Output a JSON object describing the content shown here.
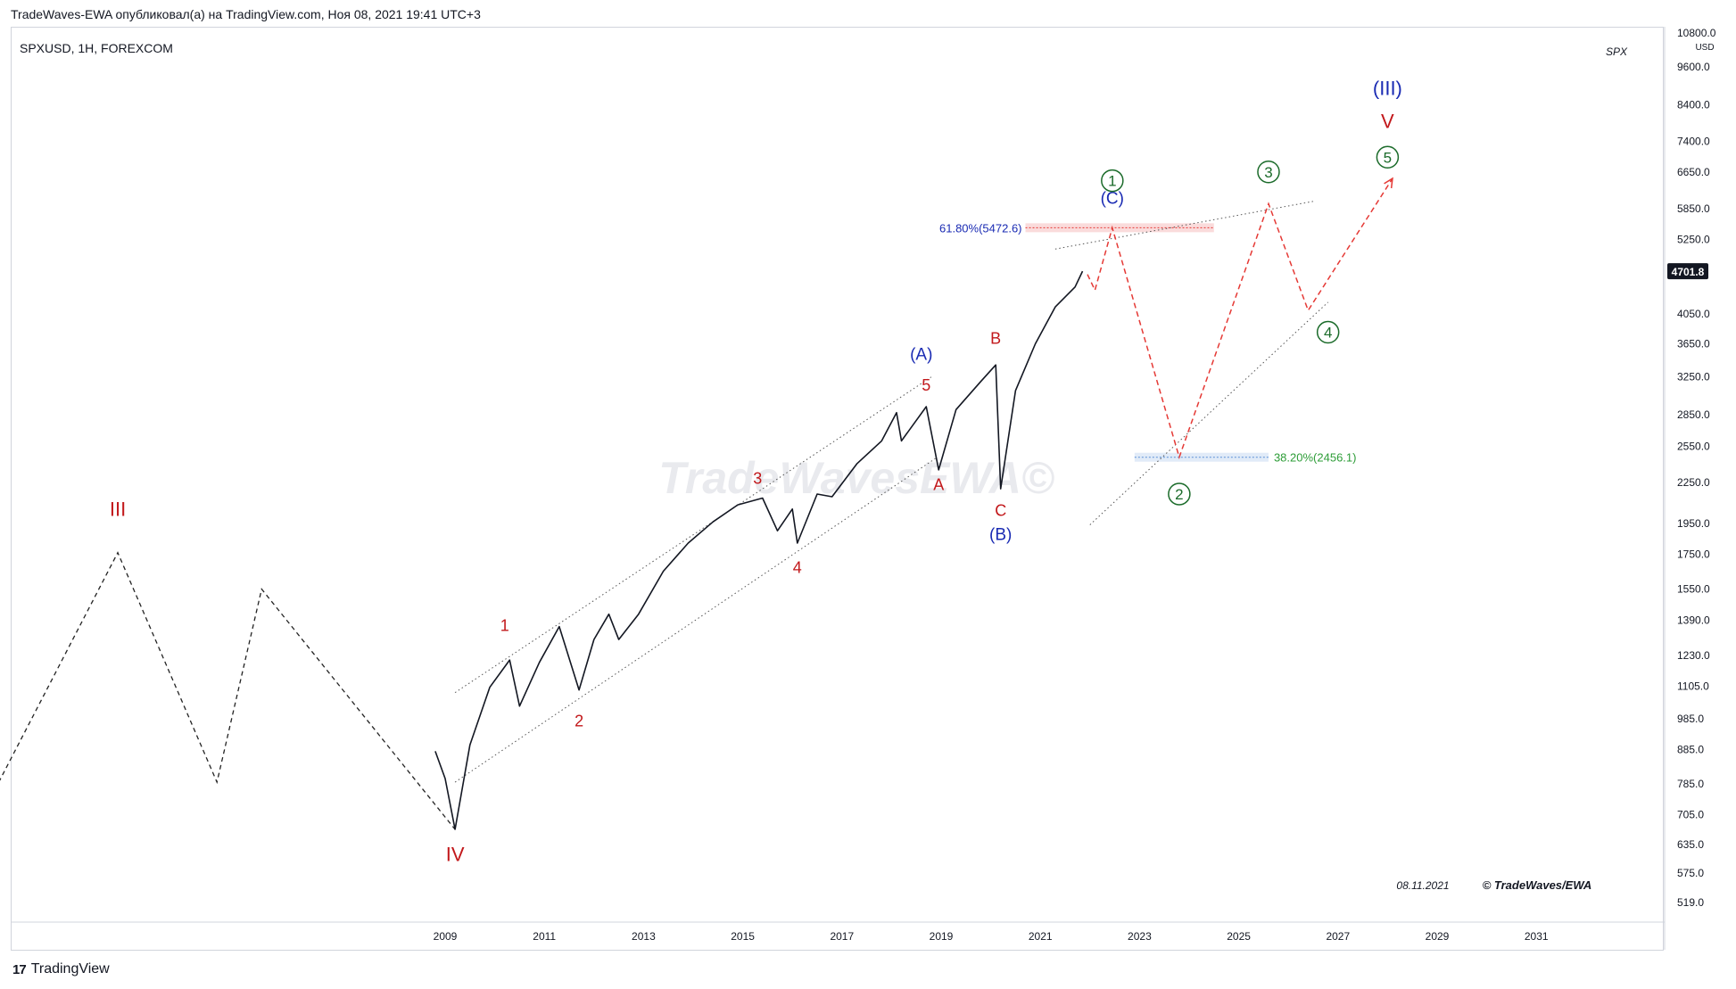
{
  "header": {
    "published": "TradeWaves-EWA опубликовал(а) на TradingView.com, Ноя 08, 2021 19:41 UTC+3",
    "symbol": "SPXUSD, 1H, FOREXCOM",
    "ticker_tag": "SPX"
  },
  "footer": {
    "logo_mark": "17",
    "brand": "TradingView"
  },
  "colors": {
    "red": "#c2181b",
    "blue": "#1a2bb3",
    "green": "#1b6b2a",
    "forecast_red": "#e53935",
    "price": "#131722",
    "fib_blue": "#1a2bb3",
    "fib_green": "#2e9d38"
  },
  "chart_data": {
    "type": "line",
    "scale": "log",
    "currency": "USD",
    "y_ticks": [
      "10800.0",
      "9600.0",
      "8400.0",
      "7400.0",
      "6650.0",
      "5850.0",
      "5250.0",
      "4050.0",
      "3650.0",
      "3250.0",
      "2850.0",
      "2550.0",
      "2250.0",
      "1950.0",
      "1750.0",
      "1550.0",
      "1390.0",
      "1230.0",
      "1105.0",
      "985.0",
      "885.0",
      "785.0",
      "705.0",
      "635.0",
      "575.0",
      "519.0"
    ],
    "x_ticks": [
      "2009",
      "2011",
      "2013",
      "2015",
      "2017",
      "2019",
      "2021",
      "2023",
      "2025",
      "2027",
      "2029",
      "2031"
    ],
    "last_price": "4701.8",
    "price_series": [
      {
        "x": 2008.8,
        "y": 880
      },
      {
        "x": 2009.0,
        "y": 800
      },
      {
        "x": 2009.2,
        "y": 670
      },
      {
        "x": 2009.5,
        "y": 900
      },
      {
        "x": 2009.9,
        "y": 1100
      },
      {
        "x": 2010.3,
        "y": 1210
      },
      {
        "x": 2010.5,
        "y": 1030
      },
      {
        "x": 2010.9,
        "y": 1200
      },
      {
        "x": 2011.3,
        "y": 1360
      },
      {
        "x": 2011.7,
        "y": 1090
      },
      {
        "x": 2012.0,
        "y": 1300
      },
      {
        "x": 2012.3,
        "y": 1420
      },
      {
        "x": 2012.5,
        "y": 1300
      },
      {
        "x": 2012.9,
        "y": 1420
      },
      {
        "x": 2013.4,
        "y": 1650
      },
      {
        "x": 2013.9,
        "y": 1820
      },
      {
        "x": 2014.4,
        "y": 1960
      },
      {
        "x": 2014.9,
        "y": 2080
      },
      {
        "x": 2015.4,
        "y": 2130
      },
      {
        "x": 2015.7,
        "y": 1900
      },
      {
        "x": 2016.0,
        "y": 2050
      },
      {
        "x": 2016.1,
        "y": 1820
      },
      {
        "x": 2016.5,
        "y": 2160
      },
      {
        "x": 2016.8,
        "y": 2140
      },
      {
        "x": 2017.3,
        "y": 2400
      },
      {
        "x": 2017.8,
        "y": 2600
      },
      {
        "x": 2018.1,
        "y": 2870
      },
      {
        "x": 2018.2,
        "y": 2600
      },
      {
        "x": 2018.7,
        "y": 2930
      },
      {
        "x": 2018.95,
        "y": 2350
      },
      {
        "x": 2019.3,
        "y": 2900
      },
      {
        "x": 2019.8,
        "y": 3200
      },
      {
        "x": 2020.1,
        "y": 3390
      },
      {
        "x": 2020.2,
        "y": 2200
      },
      {
        "x": 2020.5,
        "y": 3100
      },
      {
        "x": 2020.9,
        "y": 3650
      },
      {
        "x": 2021.3,
        "y": 4150
      },
      {
        "x": 2021.7,
        "y": 4450
      },
      {
        "x": 2021.85,
        "y": 4701.8
      }
    ],
    "history_zigzag": [
      {
        "x": 2000.0,
        "y": 790
      },
      {
        "x": 2002.4,
        "y": 1760
      },
      {
        "x": 2004.4,
        "y": 790
      },
      {
        "x": 2005.3,
        "y": 1550
      },
      {
        "x": 2009.2,
        "y": 670
      }
    ],
    "forecast_path": [
      {
        "x": 2021.95,
        "y": 4650
      },
      {
        "x": 2022.1,
        "y": 4400
      },
      {
        "x": 2022.45,
        "y": 5472.6
      },
      {
        "x": 2023.8,
        "y": 2456.1
      },
      {
        "x": 2025.6,
        "y": 5950
      },
      {
        "x": 2026.4,
        "y": 4100
      },
      {
        "x": 2028.1,
        "y": 6500
      }
    ],
    "trendlines": [
      {
        "x1": 2009.2,
        "y1": 1080,
        "x2": 2018.8,
        "y2": 3250
      },
      {
        "x1": 2009.2,
        "y1": 790,
        "x2": 2018.9,
        "y2": 2450
      },
      {
        "x1": 2021.3,
        "y1": 5080,
        "x2": 2026.5,
        "y2": 6000
      },
      {
        "x1": 2022.0,
        "y1": 1940,
        "x2": 2026.8,
        "y2": 4220
      }
    ],
    "fib_levels": [
      {
        "label": "61.80%(5472.6)",
        "value": 5472.6,
        "x_start": 2020.7,
        "x_end": 2024.5,
        "color": "#e53935",
        "label_color": "#1a2bb3",
        "label_side": "left"
      },
      {
        "label": "38.20%(2456.1)",
        "value": 2456.1,
        "x_start": 2022.9,
        "x_end": 2025.6,
        "color": "#5b8fd6",
        "label_color": "#2e9d38",
        "label_side": "right"
      }
    ],
    "wave_labels": [
      {
        "text": "III",
        "x": 2002.4,
        "y": 2000,
        "color": "red",
        "size": 22
      },
      {
        "text": "IV",
        "x": 2009.2,
        "y": 600,
        "color": "red",
        "size": 22
      },
      {
        "text": "1",
        "x": 2010.2,
        "y": 1340,
        "color": "red",
        "size": 18
      },
      {
        "text": "2",
        "x": 2011.7,
        "y": 960,
        "color": "red",
        "size": 18
      },
      {
        "text": "3",
        "x": 2015.3,
        "y": 2240,
        "color": "red",
        "size": 18
      },
      {
        "text": "4",
        "x": 2016.1,
        "y": 1640,
        "color": "red",
        "size": 18
      },
      {
        "text": "5",
        "x": 2018.7,
        "y": 3100,
        "color": "red",
        "size": 18
      },
      {
        "text": "(A)",
        "x": 2018.6,
        "y": 3450,
        "color": "blue",
        "size": 19
      },
      {
        "text": "A",
        "x": 2018.95,
        "y": 2190,
        "color": "red",
        "size": 18
      },
      {
        "text": "B",
        "x": 2020.1,
        "y": 3650,
        "color": "red",
        "size": 18
      },
      {
        "text": "C",
        "x": 2020.2,
        "y": 2000,
        "color": "red",
        "size": 18
      },
      {
        "text": "(B)",
        "x": 2020.2,
        "y": 1840,
        "color": "blue",
        "size": 19
      },
      {
        "text": "(C)",
        "x": 2022.45,
        "y": 5950,
        "color": "blue",
        "size": 19
      },
      {
        "text": "V",
        "x": 2028.0,
        "y": 7750,
        "color": "red",
        "size": 22
      },
      {
        "text": "(III)",
        "x": 2028.0,
        "y": 8700,
        "color": "blue",
        "size": 22
      }
    ],
    "circled_labels": [
      {
        "text": "1",
        "x": 2022.45,
        "y": 6450
      },
      {
        "text": "3",
        "x": 2025.6,
        "y": 6650
      },
      {
        "text": "5",
        "x": 2028.0,
        "y": 7000
      },
      {
        "text": "4",
        "x": 2026.8,
        "y": 3800
      },
      {
        "text": "2",
        "x": 2023.8,
        "y": 2160
      }
    ],
    "watermark": "TradeWavesEWA©",
    "signature_date": "08.11.2021",
    "signature": "© TradeWaves/EWA"
  }
}
